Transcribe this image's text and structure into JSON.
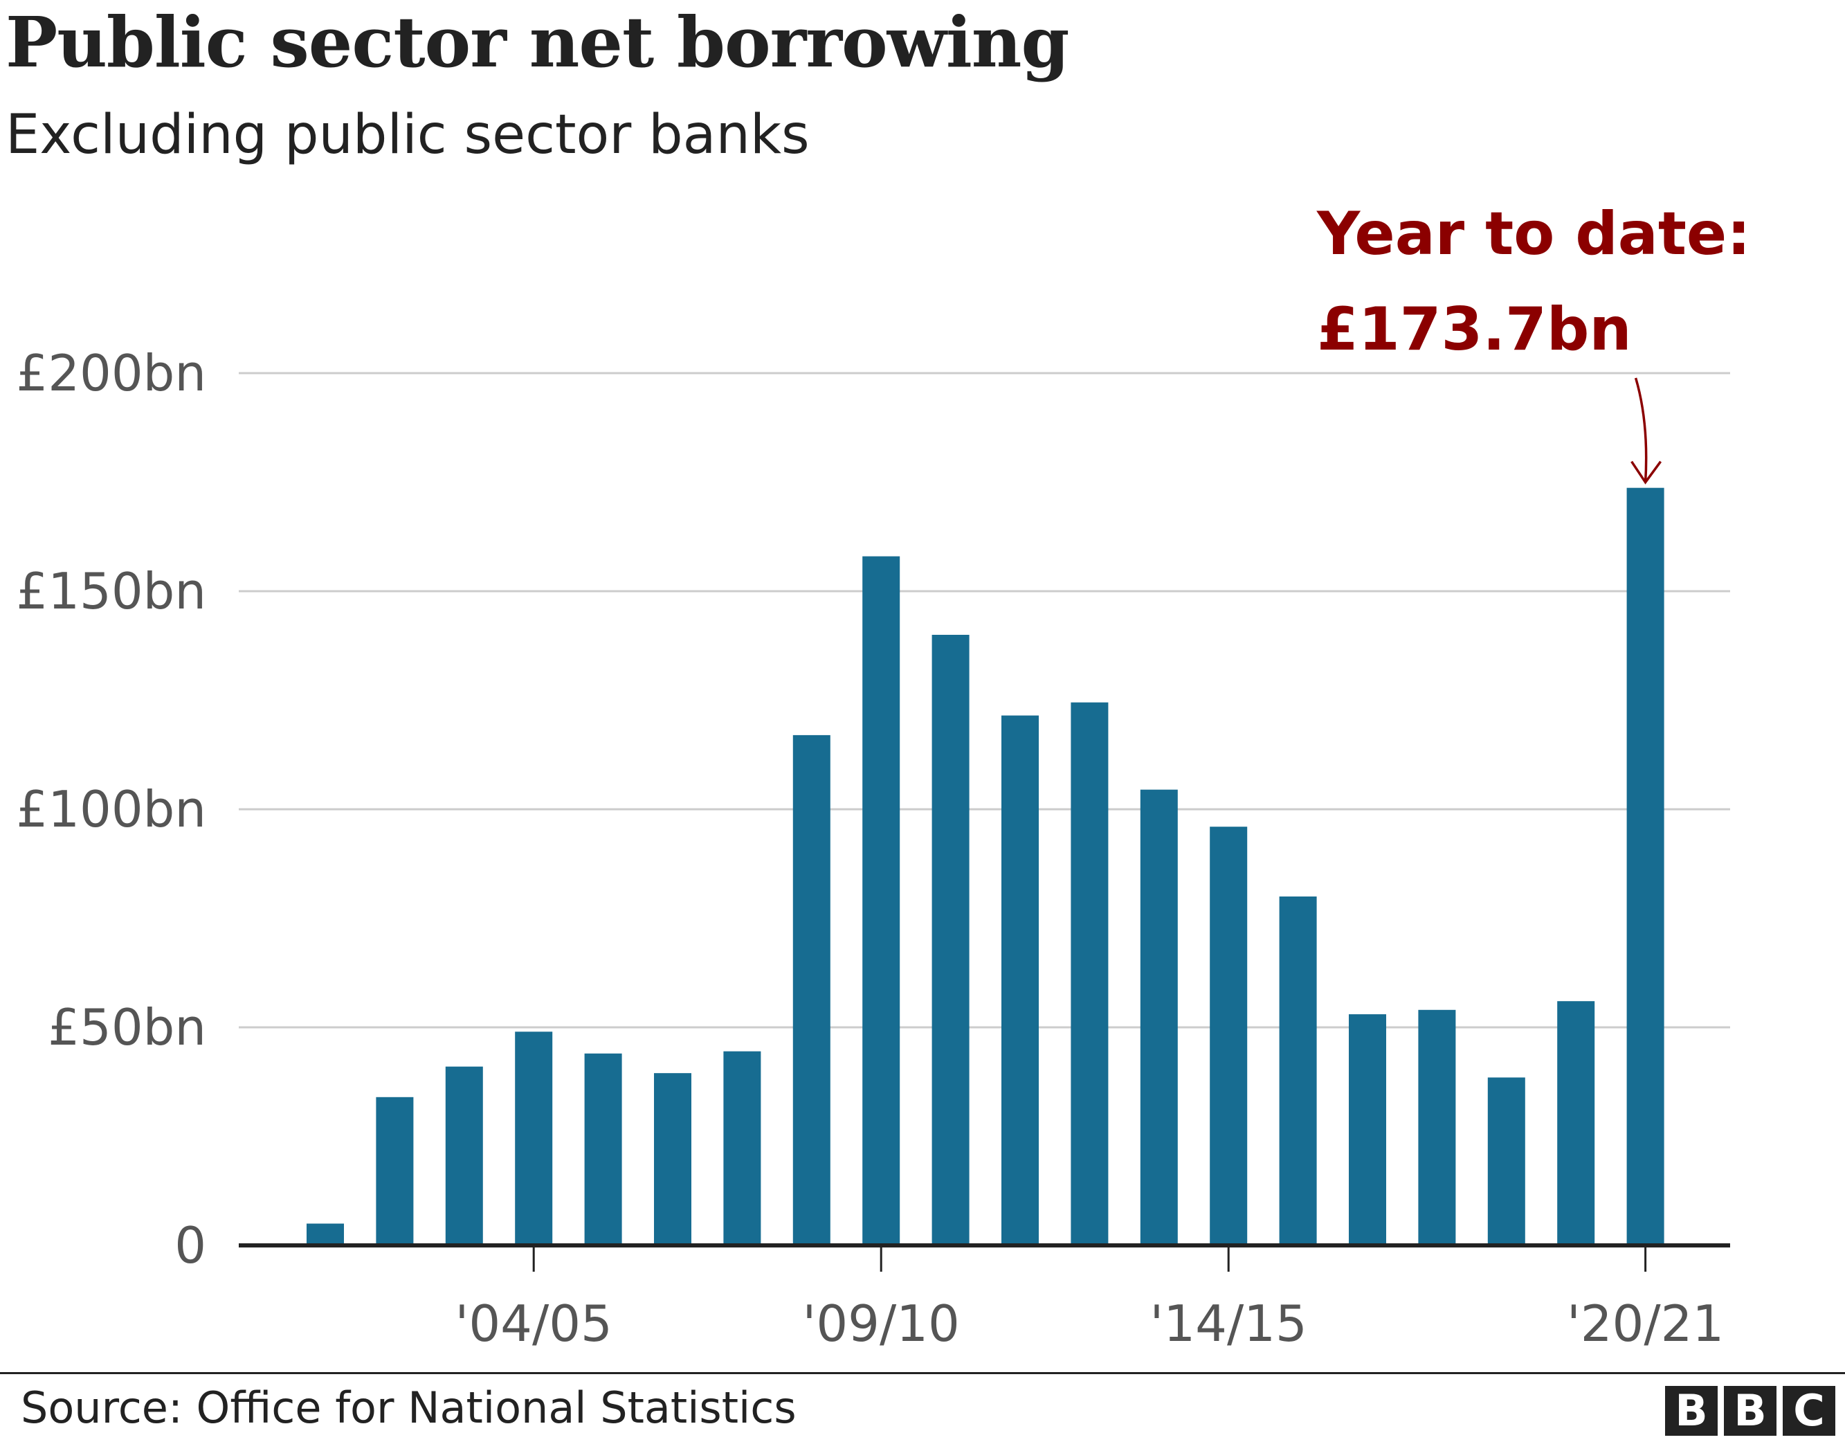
{
  "chart_data": {
    "type": "bar",
    "title": "Public sector net borrowing",
    "subtitle": "Excluding public sector banks",
    "categories": [
      "'01/02",
      "'02/03",
      "'03/04",
      "'04/05",
      "'05/06",
      "'06/07",
      "'07/08",
      "'08/09",
      "'09/10",
      "'10/11",
      "'11/12",
      "'12/13",
      "'13/14",
      "'14/15",
      "'15/16",
      "'16/17",
      "'17/18",
      "'18/19",
      "'19/20",
      "'20/21"
    ],
    "values": [
      5,
      34,
      41,
      49,
      44,
      39.5,
      44.5,
      117,
      158,
      140,
      121.5,
      124.5,
      104.5,
      96,
      80,
      53,
      54,
      38.5,
      56,
      173.7
    ],
    "x_tick_labels": [
      {
        "category": "'04/05",
        "label": "'04/05"
      },
      {
        "category": "'09/10",
        "label": "'09/10"
      },
      {
        "category": "'14/15",
        "label": "'14/15"
      },
      {
        "category": "'20/21",
        "label": "'20/21"
      }
    ],
    "y_ticks": [
      {
        "value": 0,
        "label": "0"
      },
      {
        "value": 50,
        "label": "£50bn"
      },
      {
        "value": 100,
        "label": "£100bn"
      },
      {
        "value": 150,
        "label": "£150bn"
      },
      {
        "value": 200,
        "label": "£200bn"
      }
    ],
    "ylim": [
      0,
      200
    ],
    "grid": true,
    "bar_color": "#176c91",
    "annotation": {
      "category": "'20/21",
      "line1": "Year to date:",
      "line2": "£173.7bn",
      "color": "#8b0000"
    }
  },
  "footer": {
    "source": "Source: Office for National Statistics",
    "logo_letters": [
      "B",
      "B",
      "C"
    ]
  }
}
